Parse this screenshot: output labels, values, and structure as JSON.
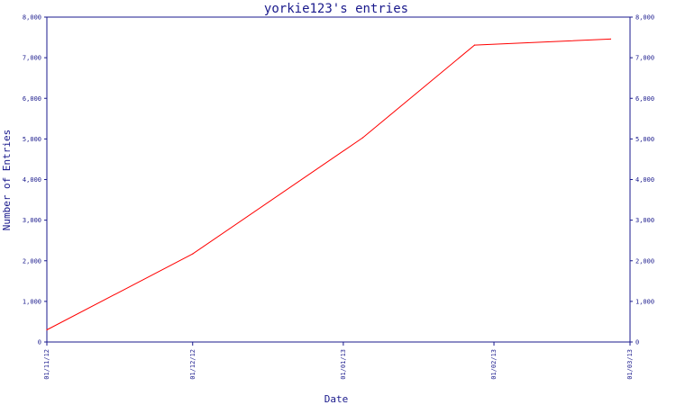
{
  "chart_data": {
    "type": "line",
    "title": "yorkie123's entries",
    "xlabel": "Date",
    "ylabel": "Number of Entries",
    "x_tick_labels": [
      "01/11/12",
      "01/12/12",
      "01/01/13",
      "01/02/13",
      "01/03/13"
    ],
    "x_ticks": [
      "2012-11-01",
      "2012-12-01",
      "2013-01-01",
      "2013-02-01",
      "2013-03-01"
    ],
    "y_tick_labels": [
      "0",
      "1,000",
      "2,000",
      "3,000",
      "4,000",
      "5,000",
      "6,000",
      "7,000",
      "8,000"
    ],
    "ylim": [
      0,
      8000
    ],
    "xlim": [
      "2012-11-01",
      "2013-03-01"
    ],
    "series": [
      {
        "color": "#ff0000",
        "points": [
          {
            "x": "2012-11-01",
            "y": 300
          },
          {
            "x": "2012-12-01",
            "y": 2170
          },
          {
            "x": "2013-01-05",
            "y": 5030
          },
          {
            "x": "2013-01-28",
            "y": 7310
          },
          {
            "x": "2013-02-25",
            "y": 7460
          }
        ]
      }
    ],
    "grid": false,
    "secondary_y_axis": true,
    "axis_color": "#1a1a8c",
    "background": "#ffffff"
  }
}
